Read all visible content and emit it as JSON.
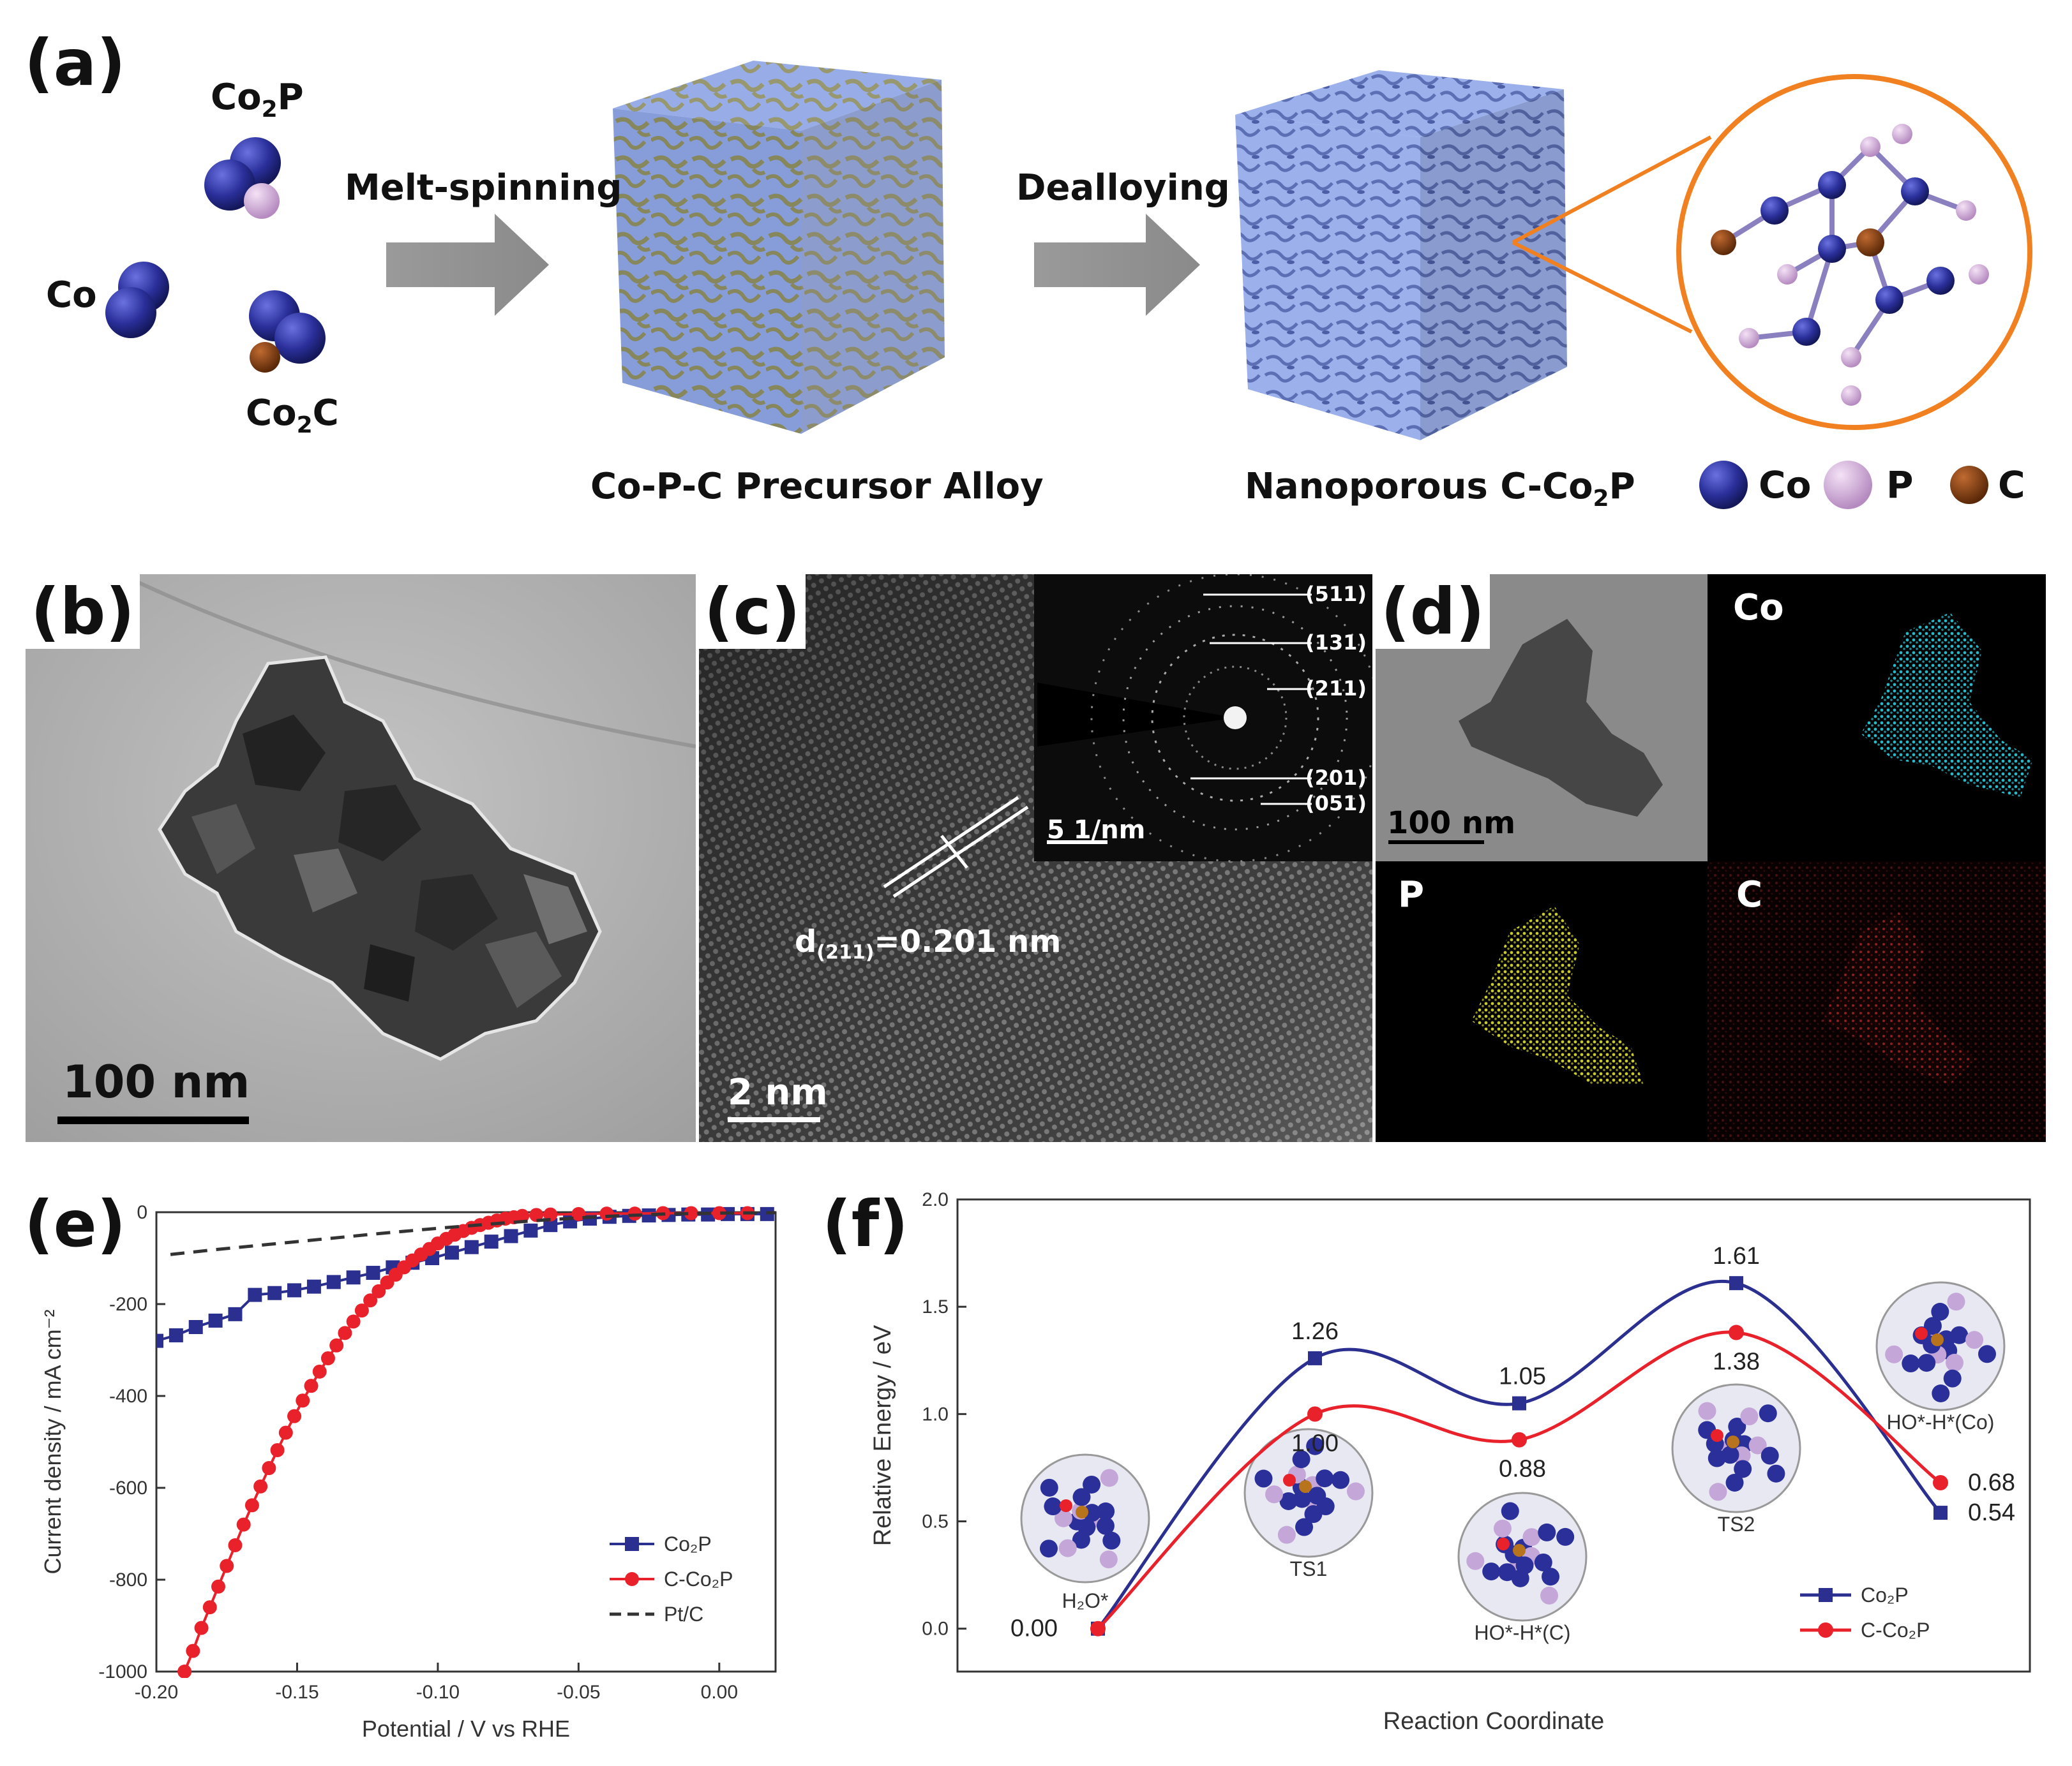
{
  "panel_a": {
    "label": "(a)",
    "species": {
      "co2p": [
        "Co",
        "2",
        "P"
      ],
      "co": "Co",
      "co2c": [
        "Co",
        "2",
        "C"
      ]
    },
    "arrow1": "Melt-spinning",
    "arrow2": "Dealloying",
    "cube1_caption": "Co-P-C Precursor Alloy",
    "cube2_caption": [
      "Nanoporous C-Co",
      "2",
      "P"
    ],
    "legend": [
      {
        "label": "Co",
        "color": "#2a2f9a"
      },
      {
        "label": "P",
        "color": "#d3a8da"
      },
      {
        "label": "C",
        "color": "#7a3a0e"
      }
    ],
    "colors": {
      "cube_blue": "#8fa6e6",
      "cube_gold": "#8f8f64",
      "zoom_circle": "#f08020"
    }
  },
  "panel_b": {
    "label": "(b)",
    "scale_bar": "100 nm"
  },
  "panel_c": {
    "label": "(c)",
    "scale_bar": "2 nm",
    "d_spacing": {
      "prefix": "d",
      "sub": "(211)",
      "value": "=0.201 nm"
    },
    "inset_scale": "5 1/nm",
    "rings": [
      "(511)",
      "(131)",
      "(211)",
      "(201)",
      "(051)"
    ]
  },
  "panel_d": {
    "label": "(d)",
    "scale_bar": "100 nm",
    "maps": [
      {
        "label": "Co",
        "color": "#2ab8c8"
      },
      {
        "label": "P",
        "color": "#c8c830"
      },
      {
        "label": "C",
        "color": "#8a2020"
      }
    ]
  },
  "chart_data": [
    {
      "type": "line",
      "panel": "(e)",
      "xlabel": "Potential / V vs RHE",
      "ylabel": "Current density / mA cm⁻²",
      "xlim": [
        -0.2,
        0.02
      ],
      "ylim": [
        -1000,
        0
      ],
      "xticks": [
        "-0.20",
        "-0.15",
        "-0.10",
        "-0.05",
        "0.00"
      ],
      "yticks": [
        "0",
        "-200",
        "-400",
        "-600",
        "-800",
        "-1000"
      ],
      "series": [
        {
          "name": "Co₂P",
          "color": "#2b2f8f",
          "marker": "square",
          "x": [
            -0.2,
            -0.193,
            -0.186,
            -0.179,
            -0.172,
            -0.165,
            -0.158,
            -0.151,
            -0.144,
            -0.137,
            -0.13,
            -0.123,
            -0.116,
            -0.109,
            -0.102,
            -0.095,
            -0.088,
            -0.081,
            -0.074,
            -0.067,
            -0.06,
            -0.053,
            -0.046,
            -0.039,
            -0.032,
            -0.025,
            -0.018,
            -0.011,
            -0.004,
            0.003,
            0.01,
            0.017
          ],
          "y": [
            -280,
            -268,
            -250,
            -236,
            -222,
            -180,
            -176,
            -170,
            -162,
            -152,
            -142,
            -132,
            -120,
            -110,
            -100,
            -88,
            -76,
            -64,
            -52,
            -40,
            -28,
            -20,
            -14,
            -10,
            -8,
            -7,
            -6,
            -5,
            -5,
            -4,
            -4,
            -4
          ]
        },
        {
          "name": "C-Co₂P",
          "color": "#e8212b",
          "marker": "circle",
          "x": [
            -0.19,
            -0.187,
            -0.184,
            -0.181,
            -0.178,
            -0.175,
            -0.172,
            -0.169,
            -0.166,
            -0.163,
            -0.16,
            -0.157,
            -0.154,
            -0.151,
            -0.148,
            -0.145,
            -0.142,
            -0.139,
            -0.136,
            -0.133,
            -0.13,
            -0.127,
            -0.124,
            -0.121,
            -0.118,
            -0.115,
            -0.112,
            -0.109,
            -0.106,
            -0.103,
            -0.1,
            -0.097,
            -0.094,
            -0.091,
            -0.088,
            -0.085,
            -0.082,
            -0.079,
            -0.076,
            -0.073,
            -0.07,
            -0.065,
            -0.06,
            -0.05,
            -0.04,
            -0.03,
            -0.02,
            -0.01,
            0.0,
            0.01
          ],
          "y": [
            -1000,
            -955,
            -905,
            -860,
            -815,
            -770,
            -725,
            -680,
            -638,
            -597,
            -557,
            -518,
            -480,
            -444,
            -410,
            -378,
            -347,
            -318,
            -290,
            -263,
            -238,
            -214,
            -192,
            -172,
            -153,
            -136,
            -120,
            -105,
            -92,
            -80,
            -68,
            -58,
            -49,
            -41,
            -34,
            -28,
            -23,
            -18,
            -14,
            -11,
            -8,
            -6,
            -5,
            -4,
            -3,
            -3,
            -2,
            -2,
            -2,
            -2
          ]
        },
        {
          "name": "Pt/C",
          "color": "#333333",
          "dash": true,
          "x": [
            -0.195,
            -0.18,
            -0.16,
            -0.14,
            -0.12,
            -0.1,
            -0.08,
            -0.06,
            -0.04,
            -0.02,
            0.0,
            0.02
          ],
          "y": [
            -92,
            -82,
            -70,
            -58,
            -46,
            -35,
            -25,
            -16,
            -9,
            -4,
            -2,
            -1
          ]
        }
      ]
    },
    {
      "type": "line",
      "panel": "(f)",
      "xlabel": "Reaction Coordinate",
      "ylabel": "Relative Energy / eV",
      "ylim": [
        -0.2,
        2.0
      ],
      "yticks": [
        "0.0",
        "0.5",
        "1.0",
        "1.5",
        "2.0"
      ],
      "categories": [
        "H₂O*",
        "TS1",
        "HO*-H*(C)",
        "TS2",
        "HO*-H*(Co)"
      ],
      "series": [
        {
          "name": "Co₂P",
          "color": "#2b2f8f",
          "values": [
            0.0,
            1.26,
            1.05,
            1.61,
            0.54
          ],
          "labels": [
            "0.00",
            "1.26",
            "1.05",
            "1.61",
            "0.54"
          ]
        },
        {
          "name": "C-Co₂P",
          "color": "#e8212b",
          "values": [
            0.0,
            1.0,
            0.88,
            1.38,
            0.68
          ],
          "labels": [
            "0.00",
            "1.00",
            "0.88",
            "1.38",
            "0.68"
          ]
        }
      ]
    }
  ]
}
